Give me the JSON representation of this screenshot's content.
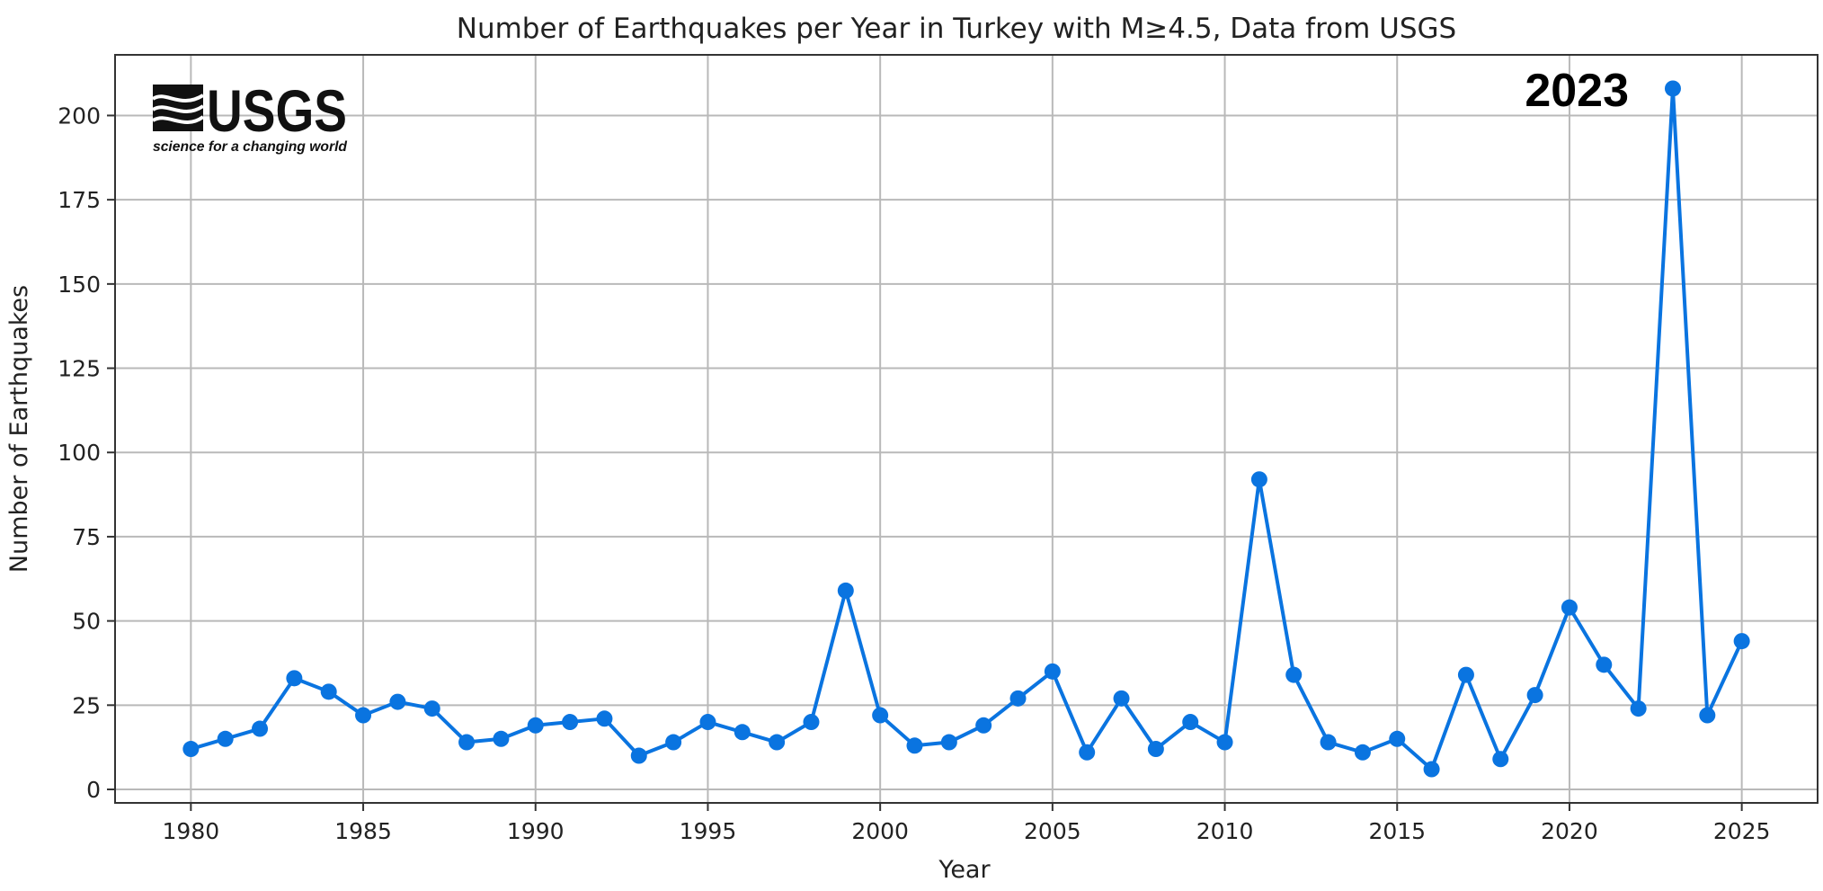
{
  "chart_data": {
    "type": "line",
    "title": "Number of Earthquakes per Year in Turkey with M≥4.5, Data from USGS",
    "xlabel": "Year",
    "ylabel": "Number of Earthquakes",
    "xlim": [
      1977.8,
      2027.2
    ],
    "ylim": [
      -4,
      218
    ],
    "xticks": [
      1980,
      1985,
      1990,
      1995,
      2000,
      2005,
      2010,
      2015,
      2020,
      2025
    ],
    "yticks": [
      0,
      25,
      50,
      75,
      100,
      125,
      150,
      175,
      200
    ],
    "grid": true,
    "series": [
      {
        "color": "#0a74e0",
        "marker": "circle",
        "x": [
          1980,
          1981,
          1982,
          1983,
          1984,
          1985,
          1986,
          1987,
          1988,
          1989,
          1990,
          1991,
          1992,
          1993,
          1994,
          1995,
          1996,
          1997,
          1998,
          1999,
          2000,
          2001,
          2002,
          2003,
          2004,
          2005,
          2006,
          2007,
          2008,
          2009,
          2010,
          2011,
          2012,
          2013,
          2014,
          2015,
          2016,
          2017,
          2018,
          2019,
          2020,
          2021,
          2022,
          2023,
          2024,
          2025
        ],
        "values": [
          12,
          15,
          18,
          33,
          29,
          22,
          26,
          24,
          14,
          15,
          19,
          20,
          21,
          10,
          14,
          20,
          17,
          14,
          20,
          59,
          22,
          13,
          14,
          19,
          27,
          35,
          11,
          27,
          12,
          20,
          14,
          92,
          34,
          14,
          11,
          15,
          6,
          34,
          9,
          28,
          54,
          37,
          24,
          208,
          22,
          44
        ]
      }
    ],
    "annotations": [
      {
        "text": "2023"
      }
    ]
  },
  "logo": {
    "wordmark": "USGS",
    "tagline": "science for a changing world"
  }
}
